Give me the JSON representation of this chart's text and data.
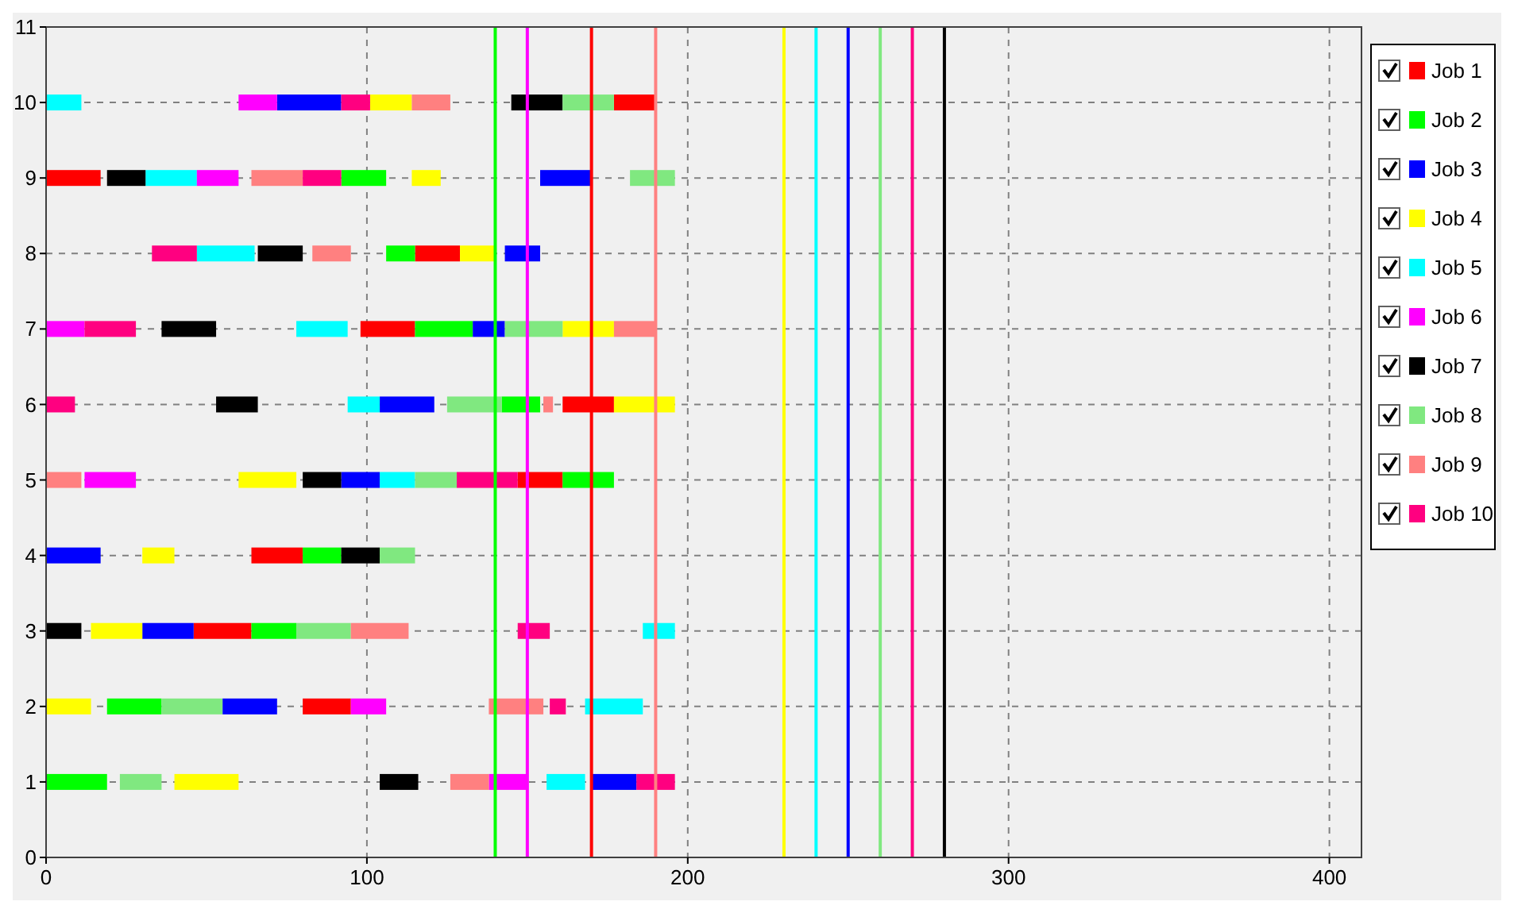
{
  "chart_data": {
    "type": "bar",
    "orientation": "horizontal",
    "categories": [
      "11",
      "10",
      "9",
      "8",
      "7",
      "6",
      "5",
      "4",
      "3",
      "2",
      "1",
      "0"
    ],
    "series": [
      {
        "name": "Job 1",
        "color": "#ff0000",
        "base": [
          null,
          177,
          0,
          115,
          98,
          161,
          147,
          64,
          46,
          80,
          null,
          null
        ],
        "values": [
          null,
          13,
          17,
          14,
          17,
          16,
          14,
          16,
          18,
          15,
          null,
          null
        ]
      },
      {
        "name": "Job 2",
        "color": "#00ff00",
        "base": [
          null,
          null,
          92,
          106,
          115,
          142,
          161,
          80,
          64,
          19,
          0,
          null
        ],
        "values": [
          null,
          null,
          14,
          9,
          18,
          12,
          16,
          12,
          14,
          17,
          19,
          null
        ]
      },
      {
        "name": "Job 3",
        "color": "#0000ff",
        "base": [
          null,
          72,
          154,
          143,
          133,
          104,
          92,
          0,
          30,
          55,
          170,
          null
        ],
        "values": [
          null,
          20,
          16,
          11,
          10,
          17,
          12,
          17,
          16,
          17,
          14,
          null
        ]
      },
      {
        "name": "Job 4",
        "color": "#ffff00",
        "base": [
          null,
          101,
          114,
          129,
          161,
          177,
          60,
          30,
          14,
          0,
          40,
          null
        ],
        "values": [
          null,
          13,
          9,
          11,
          16,
          19,
          18,
          10,
          16,
          14,
          20,
          null
        ]
      },
      {
        "name": "Job 5",
        "color": "#00ffff",
        "base": [
          null,
          0,
          31,
          47,
          78,
          94,
          104,
          null,
          186,
          168,
          156,
          null
        ],
        "values": [
          null,
          11,
          16,
          18,
          16,
          10,
          11,
          null,
          10,
          18,
          12,
          null
        ]
      },
      {
        "name": "Job 6",
        "color": "#ff00ff",
        "base": [
          null,
          60,
          47,
          null,
          0,
          null,
          12,
          null,
          null,
          95,
          138,
          null
        ],
        "values": [
          null,
          12,
          13,
          null,
          12,
          null,
          16,
          null,
          null,
          11,
          12,
          null
        ]
      },
      {
        "name": "Job 7",
        "color": "#000000",
        "base": [
          null,
          145,
          19,
          66,
          36,
          53,
          80,
          92,
          0,
          null,
          104,
          null
        ],
        "values": [
          null,
          16,
          12,
          14,
          17,
          13,
          12,
          12,
          11,
          null,
          12,
          null
        ]
      },
      {
        "name": "Job 8",
        "color": "#80e880",
        "base": [
          null,
          161,
          182,
          null,
          143,
          125,
          115,
          104,
          78,
          36,
          23,
          null
        ],
        "values": [
          null,
          16,
          14,
          null,
          18,
          17,
          13,
          11,
          17,
          19,
          13,
          null
        ]
      },
      {
        "name": "Job 9",
        "color": "#ff8080",
        "base": [
          null,
          114,
          64,
          83,
          177,
          155,
          0,
          null,
          95,
          138,
          126,
          null
        ],
        "values": [
          null,
          12,
          16,
          12,
          13,
          3,
          11,
          null,
          18,
          17,
          12,
          null
        ]
      },
      {
        "name": "Job 10",
        "color": "#ff0080",
        "base": [
          null,
          92,
          80,
          33,
          12,
          0,
          128,
          null,
          147,
          157,
          184,
          null
        ],
        "values": [
          null,
          9,
          12,
          14,
          16,
          9,
          19,
          null,
          10,
          5,
          12,
          null
        ]
      }
    ],
    "xlim": [
      0,
      410
    ],
    "xticks": [
      0,
      100,
      200,
      300,
      400
    ],
    "ref_lines": [
      {
        "axis": "x",
        "value": 140,
        "color": "#00ff00"
      },
      {
        "axis": "x",
        "value": 150,
        "color": "#ff00ff"
      },
      {
        "axis": "x",
        "value": 170,
        "color": "#ff0000"
      },
      {
        "axis": "x",
        "value": 190,
        "color": "#ff8080"
      },
      {
        "axis": "x",
        "value": 230,
        "color": "#ffff00"
      },
      {
        "axis": "x",
        "value": 240,
        "color": "#00ffff"
      },
      {
        "axis": "x",
        "value": 250,
        "color": "#0000ff"
      },
      {
        "axis": "x",
        "value": 260,
        "color": "#80e880"
      },
      {
        "axis": "x",
        "value": 270,
        "color": "#ff0080"
      },
      {
        "axis": "x",
        "value": 280,
        "color": "#000000"
      }
    ],
    "grid": true,
    "legend": "right"
  }
}
